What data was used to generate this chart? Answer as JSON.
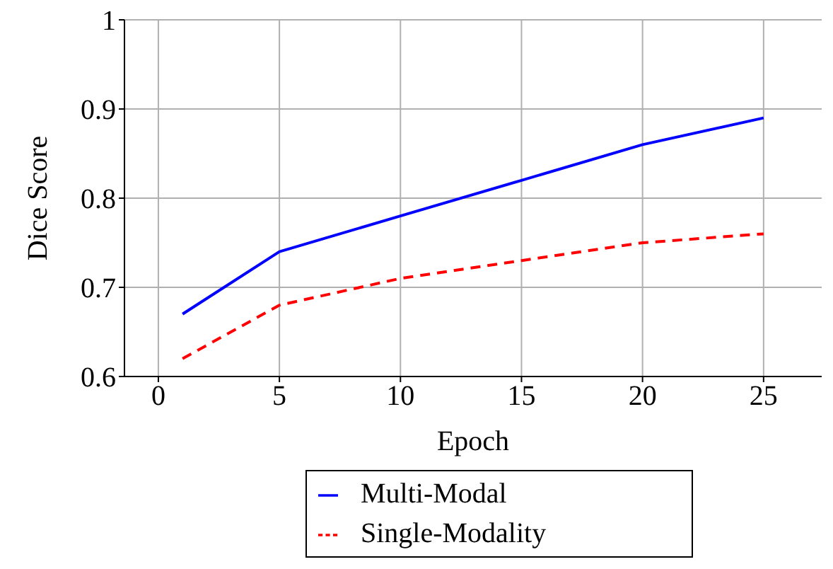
{
  "chart_data": {
    "type": "line",
    "xlabel": "Epoch",
    "ylabel": "Dice Score",
    "x": [
      1,
      5,
      10,
      15,
      20,
      25
    ],
    "series": [
      {
        "name": "Multi-Modal",
        "color": "#0000ff",
        "values": [
          0.67,
          0.74,
          0.78,
          0.82,
          0.86,
          0.89
        ],
        "line_style": "solid"
      },
      {
        "name": "Single-Modality",
        "color": "#ff0000",
        "values": [
          0.62,
          0.68,
          0.71,
          0.73,
          0.75,
          0.76
        ],
        "line_style": "dashed"
      }
    ],
    "xlim": [
      -1.4,
      27.4
    ],
    "xticks": [
      0,
      5,
      10,
      15,
      20,
      25
    ],
    "ylim": [
      0.6,
      1
    ],
    "yticks": [
      0.6,
      0.7,
      0.8,
      0.9,
      1
    ],
    "grid": true,
    "legend": "bottom",
    "marker": "none"
  }
}
